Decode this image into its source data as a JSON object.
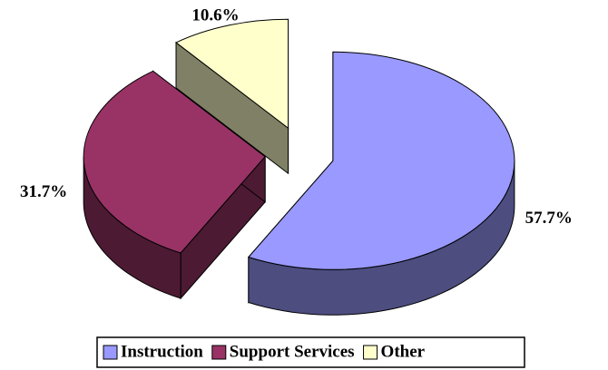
{
  "chart_data": {
    "type": "pie",
    "categories": [
      "Instruction",
      "Support Services",
      "Other"
    ],
    "values": [
      57.7,
      31.7,
      10.6
    ],
    "value_labels": [
      "57.7%",
      "31.7%",
      "10.6%"
    ],
    "colors": [
      "#9999ff",
      "#993366",
      "#ffffcc"
    ],
    "legend": "bottom"
  }
}
